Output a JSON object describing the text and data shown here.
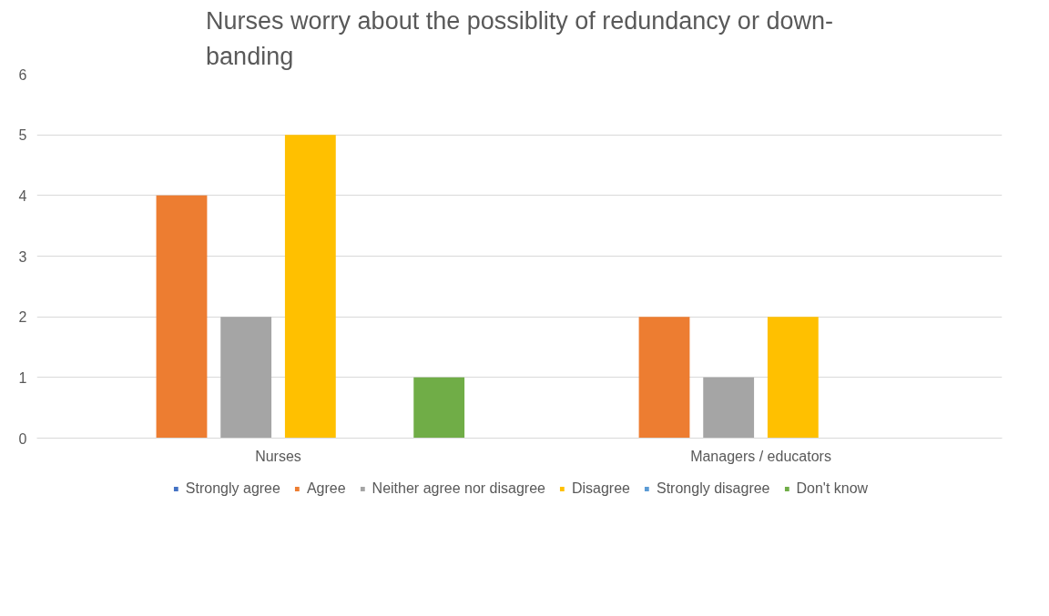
{
  "chart_data": {
    "type": "bar",
    "title": "Nurses worry about the possiblity of redundancy or down-banding",
    "categories": [
      "Nurses",
      "Managers / educators"
    ],
    "series": [
      {
        "name": "Strongly agree",
        "color": "#4472c4",
        "values": [
          0,
          0
        ]
      },
      {
        "name": "Agree",
        "color": "#ed7d31",
        "values": [
          4,
          2
        ]
      },
      {
        "name": "Neither agree nor disagree",
        "color": "#a5a5a5",
        "values": [
          2,
          1
        ]
      },
      {
        "name": "Disagree",
        "color": "#ffc000",
        "values": [
          5,
          2
        ]
      },
      {
        "name": "Strongly disagree",
        "color": "#5b9bd5",
        "values": [
          0,
          0
        ]
      },
      {
        "name": "Don't know",
        "color": "#70ad47",
        "values": [
          1,
          0
        ]
      }
    ],
    "ylim": [
      0,
      6
    ],
    "yticks": [
      0,
      1,
      2,
      3,
      4,
      5,
      6
    ],
    "grid": "y",
    "legend": "bottom"
  }
}
